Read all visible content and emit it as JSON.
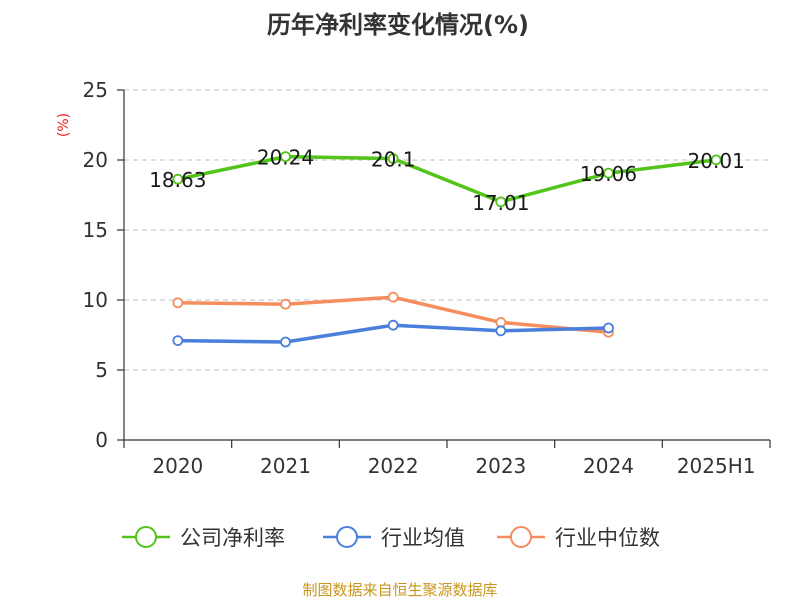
{
  "chart_data": {
    "type": "line",
    "title": "历年净利率变化情况(%)",
    "ylabel": "(%)",
    "xlabel": "",
    "categories": [
      "2020",
      "2021",
      "2022",
      "2023",
      "2024",
      "2025H1"
    ],
    "ylim": [
      0,
      25
    ],
    "yticks": [
      0,
      5,
      10,
      15,
      20,
      25
    ],
    "grid": true,
    "legend_position": "bottom",
    "series": [
      {
        "name": "公司净利率",
        "color": "#52c41a",
        "values": [
          18.63,
          20.24,
          20.1,
          17.01,
          19.06,
          20.01
        ],
        "labels": [
          "18.63",
          "20.24",
          "20.1",
          "17.01",
          "19.06",
          "20.01"
        ]
      },
      {
        "name": "行业均值",
        "color": "#4a7fdc",
        "values": [
          7.1,
          7.0,
          8.2,
          7.8,
          8.0,
          null
        ]
      },
      {
        "name": "行业中位数",
        "color": "#f68d5c",
        "values": [
          9.8,
          9.7,
          10.2,
          8.4,
          7.7,
          null
        ]
      }
    ]
  },
  "source": "制图数据来自恒生聚源数据库",
  "colors": {
    "unit_label": "#e8231c",
    "source_text": "#c8961f",
    "axis": "#333333",
    "grid": "#cccccc"
  }
}
